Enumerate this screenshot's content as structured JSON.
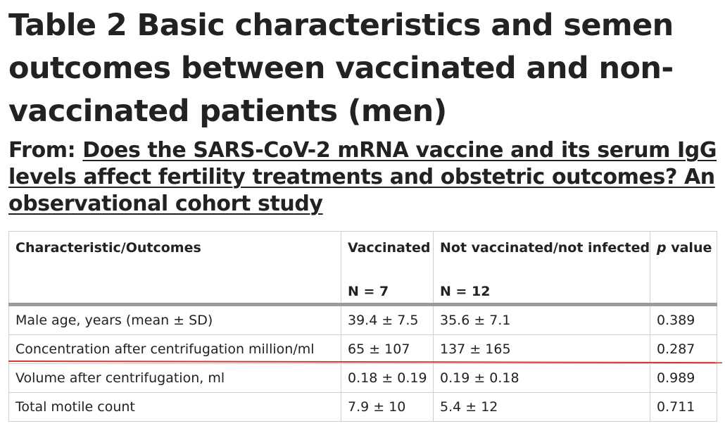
{
  "title": "Table 2 Basic characteristics and semen outcomes between vaccinated and non-vaccinated patients (men)",
  "from": {
    "label": "From: ",
    "link_text": "Does the SARS-CoV-2 mRNA vaccine and its serum IgG levels affect fertility treatments and obstetric outcomes? An observational cohort study"
  },
  "table": {
    "headers": [
      {
        "label": "Characteristic/Outcomes",
        "sub": ""
      },
      {
        "label": "Vaccinated",
        "sub": "N = 7"
      },
      {
        "label": "Not vaccinated/not infected",
        "sub": "N = 12"
      },
      {
        "label_italic": "p",
        "label": " value",
        "sub": ""
      }
    ],
    "rows": [
      [
        "Male age, years (mean ± SD)",
        "39.4 ± 7.5",
        "35.6 ± 7.1",
        "0.389"
      ],
      [
        "Concentration after centrifugation million/ml",
        "65 ± 107",
        "137 ± 165",
        "0.287"
      ],
      [
        "Volume after centrifugation, ml",
        "0.18 ± 0.19",
        "0.19 ± 0.18",
        "0.989"
      ],
      [
        "Total motile count",
        "7.9 ± 10",
        "5.4 ± 12",
        "0.711"
      ]
    ]
  },
  "annotation": {
    "line_color": "#d43a2f"
  }
}
